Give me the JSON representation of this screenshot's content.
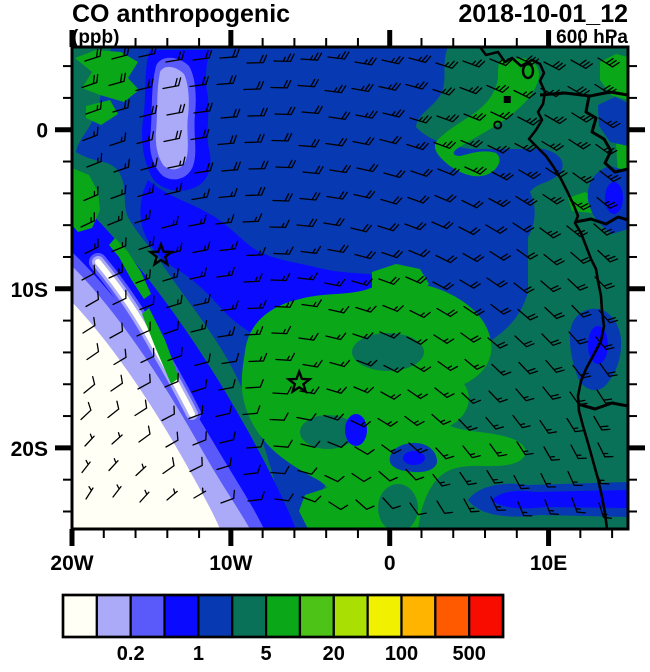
{
  "header": {
    "title": "CO anthropogenic",
    "valid_time": "2018-10-01_12",
    "units": "(ppb)",
    "level": "600 hPa"
  },
  "chart_data": {
    "type": "heatmap",
    "subtype": "filled-contour map with wind barb overlay",
    "title": "CO anthropogenic",
    "valid_time": "2018-10-01_12",
    "pressure_level": "600 hPa",
    "units": "ppb",
    "projection": "cylindrical lat-lon, west-central Africa / southeast Atlantic",
    "lon_range_deg": [
      -20,
      15
    ],
    "lat_range_deg": [
      -25.1,
      5.2
    ],
    "x_tick_labels": [
      "20W",
      "10W",
      "0",
      "10E"
    ],
    "y_tick_labels": [
      "0",
      "10S",
      "20S"
    ],
    "minor_tick_interval_deg": 2,
    "contour_levels_ppb": [
      0.1,
      0.2,
      0.5,
      1,
      2,
      5,
      10,
      20,
      50,
      100,
      200,
      500
    ],
    "colorbar_labels": [
      "0.2",
      "1",
      "5",
      "20",
      "100",
      "500"
    ],
    "palette": [
      "#fffff6",
      "#aaaaf8",
      "#5a5afa",
      "#0a0aff",
      "#0739b2",
      "#0a7159",
      "#0aa718",
      "#4cc316",
      "#aadf04",
      "#f0f000",
      "#ffb400",
      "#ff5a00",
      "#f80c00"
    ],
    "field_regions": [
      {
        "value_ppb": "<0.2",
        "appearance": "white with pale violet banded rim",
        "location": "southwest corner; gradient bands arc from ~20W,10S to ~3W,25S with a bright white filament near 15W,9S-12S"
      },
      {
        "value_ppb": "0.2-2",
        "appearance": "violet and blue plume",
        "location": "broad maximum-gradient plume over upper-left and center of domain, 5N to 15S"
      },
      {
        "value_ppb": "2-5",
        "appearance": "dark teal background",
        "location": "most of the domain and the African coast"
      },
      {
        "value_ppb": "5-10",
        "appearance": "green patches",
        "location": "Gulf of Guinea coast near 8E,0-3N; northeast corner; large blob near 5W-5E,12S-22S"
      }
    ],
    "wind_overlay": {
      "type": "wind_barbs",
      "pattern": "easterlies across the north, southerlies along the Angola coast, weak anticyclonic turning in the southwest corner"
    },
    "markers": [
      {
        "shape": "open-star",
        "lon": -14.4,
        "lat": -7.9
      },
      {
        "shape": "open-star",
        "lon": -5.7,
        "lat": -15.9
      },
      {
        "shape": "small-circle",
        "lon": 6.8,
        "lat": 0.3
      },
      {
        "shape": "small-square",
        "lon": 7.4,
        "lat": 1.9
      }
    ]
  },
  "axes": {
    "x_major": [
      {
        "label": "20W",
        "lon": -20
      },
      {
        "label": "10W",
        "lon": -10
      },
      {
        "label": "0",
        "lon": 0
      },
      {
        "label": "10E",
        "lon": 10
      }
    ],
    "y_major": [
      {
        "label": "0",
        "lat": 0
      },
      {
        "label": "10S",
        "lat": -10
      },
      {
        "label": "20S",
        "lat": -20
      }
    ]
  },
  "colorbar": {
    "colors": [
      "#fffff6",
      "#aaaaf8",
      "#5a5afa",
      "#0a0aff",
      "#0739b2",
      "#0a7159",
      "#0aa718",
      "#4cc316",
      "#aadf04",
      "#f0f000",
      "#ffb400",
      "#ff5a00",
      "#f80c00"
    ],
    "labels": [
      {
        "text": "0.2",
        "boundary_index": 2
      },
      {
        "text": "1",
        "boundary_index": 4
      },
      {
        "text": "5",
        "boundary_index": 6
      },
      {
        "text": "20",
        "boundary_index": 8
      },
      {
        "text": "100",
        "boundary_index": 10
      },
      {
        "text": "500",
        "boundary_index": 12
      }
    ]
  }
}
